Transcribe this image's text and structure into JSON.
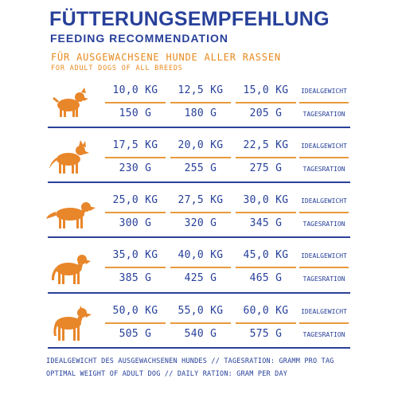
{
  "header": {
    "title": "FÜTTERUNGSEMPFEHLUNG",
    "subtitle": "FEEDING RECOMMENDATION",
    "sub_de": "FÜR AUSGEWACHSENE HUNDE ALLER RASSEN",
    "sub_en": "FOR ADULT DOGS OF ALL BREEDS"
  },
  "labels": {
    "weight": "IDEALGEWICHT",
    "ration": "TAGESRATION"
  },
  "rows": [
    {
      "dog_icon": "small-dog-icon",
      "weights": [
        "10,0 KG",
        "12,5 KG",
        "15,0 KG"
      ],
      "rations": [
        "150 G",
        "180 G",
        "205 G"
      ]
    },
    {
      "dog_icon": "shepherd-dog-icon",
      "weights": [
        "17,5 KG",
        "20,0 KG",
        "22,5 KG"
      ],
      "rations": [
        "230 G",
        "255 G",
        "275 G"
      ]
    },
    {
      "dog_icon": "retriever-dog-icon",
      "weights": [
        "25,0 KG",
        "27,5 KG",
        "30,0 KG"
      ],
      "rations": [
        "300 G",
        "320 G",
        "345 G"
      ]
    },
    {
      "dog_icon": "labrador-dog-icon",
      "weights": [
        "35,0 KG",
        "40,0 KG",
        "45,0 KG"
      ],
      "rations": [
        "385 G",
        "425 G",
        "465 G"
      ]
    },
    {
      "dog_icon": "great-dane-dog-icon",
      "weights": [
        "50,0 KG",
        "55,0 KG",
        "60,0 KG"
      ],
      "rations": [
        "505 G",
        "540 G",
        "575 G"
      ]
    }
  ],
  "footer": {
    "de": "IDEALGEWICHT DES AUSGEWACHSENEN HUNDES // TAGESRATION: GRAMM PRO TAG",
    "en": "OPTIMAL WEIGHT OF ADULT DOG // DAILY RATION: GRAM PER DAY"
  },
  "colors": {
    "navy": "#27409a",
    "orange": "#e8862a"
  }
}
